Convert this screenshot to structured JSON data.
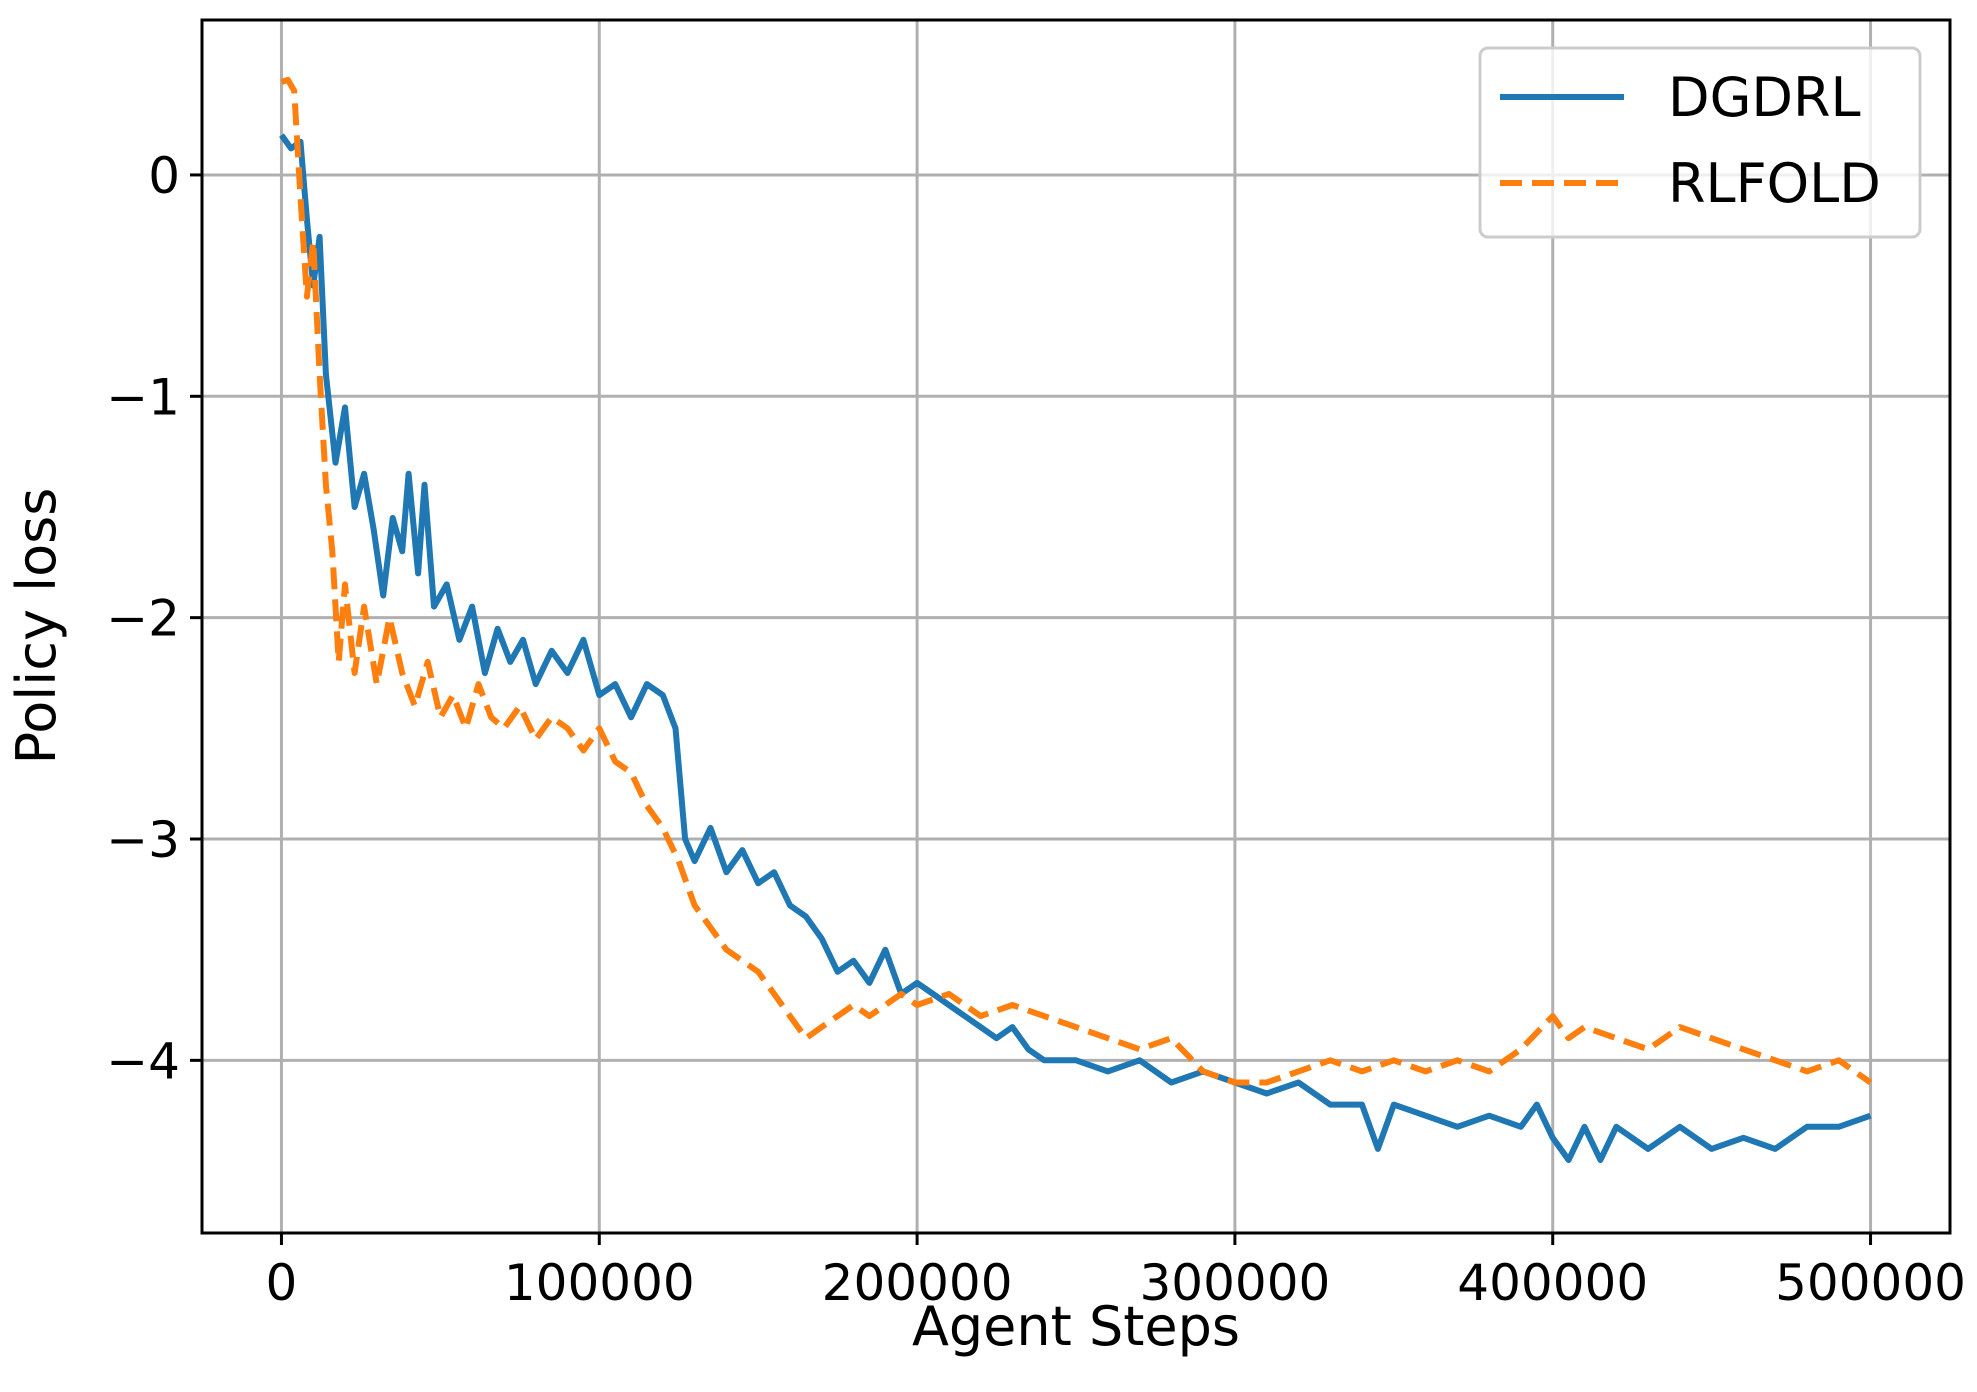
{
  "chart_data": {
    "type": "line",
    "xlabel": "Agent Steps",
    "ylabel": "Policy loss",
    "xlim": [
      -25000,
      525000
    ],
    "ylim": [
      -4.78,
      0.7
    ],
    "xticks": [
      0,
      100000,
      200000,
      300000,
      400000,
      500000
    ],
    "xtick_labels": [
      "0",
      "100000",
      "200000",
      "300000",
      "400000",
      "500000"
    ],
    "yticks": [
      0,
      -1,
      -2,
      -3,
      -4
    ],
    "ytick_labels": [
      "0",
      "−1",
      "−2",
      "−3",
      "−4"
    ],
    "grid": true,
    "legend_position": "top-right",
    "series": [
      {
        "name": "DGDRL",
        "color": "#1f77b4",
        "dash": "solid",
        "points": [
          [
            0,
            0.18
          ],
          [
            3000,
            0.12
          ],
          [
            6000,
            0.15
          ],
          [
            8000,
            -0.2
          ],
          [
            10000,
            -0.5
          ],
          [
            12000,
            -0.28
          ],
          [
            14000,
            -0.9
          ],
          [
            17000,
            -1.3
          ],
          [
            20000,
            -1.05
          ],
          [
            23000,
            -1.5
          ],
          [
            26000,
            -1.35
          ],
          [
            29000,
            -1.6
          ],
          [
            32000,
            -1.9
          ],
          [
            35000,
            -1.55
          ],
          [
            38000,
            -1.7
          ],
          [
            40000,
            -1.35
          ],
          [
            43000,
            -1.8
          ],
          [
            45000,
            -1.4
          ],
          [
            48000,
            -1.95
          ],
          [
            52000,
            -1.85
          ],
          [
            56000,
            -2.1
          ],
          [
            60000,
            -1.95
          ],
          [
            64000,
            -2.25
          ],
          [
            68000,
            -2.05
          ],
          [
            72000,
            -2.2
          ],
          [
            76000,
            -2.1
          ],
          [
            80000,
            -2.3
          ],
          [
            85000,
            -2.15
          ],
          [
            90000,
            -2.25
          ],
          [
            95000,
            -2.1
          ],
          [
            100000,
            -2.35
          ],
          [
            105000,
            -2.3
          ],
          [
            110000,
            -2.45
          ],
          [
            115000,
            -2.3
          ],
          [
            120000,
            -2.35
          ],
          [
            124000,
            -2.5
          ],
          [
            127000,
            -3.0
          ],
          [
            130000,
            -3.1
          ],
          [
            135000,
            -2.95
          ],
          [
            140000,
            -3.15
          ],
          [
            145000,
            -3.05
          ],
          [
            150000,
            -3.2
          ],
          [
            155000,
            -3.15
          ],
          [
            160000,
            -3.3
          ],
          [
            165000,
            -3.35
          ],
          [
            170000,
            -3.45
          ],
          [
            175000,
            -3.6
          ],
          [
            180000,
            -3.55
          ],
          [
            185000,
            -3.65
          ],
          [
            190000,
            -3.5
          ],
          [
            195000,
            -3.7
          ],
          [
            200000,
            -3.65
          ],
          [
            205000,
            -3.7
          ],
          [
            210000,
            -3.75
          ],
          [
            215000,
            -3.8
          ],
          [
            220000,
            -3.85
          ],
          [
            225000,
            -3.9
          ],
          [
            230000,
            -3.85
          ],
          [
            235000,
            -3.95
          ],
          [
            240000,
            -4.0
          ],
          [
            250000,
            -4.0
          ],
          [
            260000,
            -4.05
          ],
          [
            270000,
            -4.0
          ],
          [
            280000,
            -4.1
          ],
          [
            290000,
            -4.05
          ],
          [
            300000,
            -4.1
          ],
          [
            310000,
            -4.15
          ],
          [
            320000,
            -4.1
          ],
          [
            330000,
            -4.2
          ],
          [
            340000,
            -4.2
          ],
          [
            345000,
            -4.4
          ],
          [
            350000,
            -4.2
          ],
          [
            360000,
            -4.25
          ],
          [
            370000,
            -4.3
          ],
          [
            380000,
            -4.25
          ],
          [
            390000,
            -4.3
          ],
          [
            395000,
            -4.2
          ],
          [
            400000,
            -4.35
          ],
          [
            405000,
            -4.45
          ],
          [
            410000,
            -4.3
          ],
          [
            415000,
            -4.45
          ],
          [
            420000,
            -4.3
          ],
          [
            430000,
            -4.4
          ],
          [
            440000,
            -4.3
          ],
          [
            450000,
            -4.4
          ],
          [
            460000,
            -4.35
          ],
          [
            470000,
            -4.4
          ],
          [
            480000,
            -4.3
          ],
          [
            490000,
            -4.3
          ],
          [
            500000,
            -4.25
          ]
        ]
      },
      {
        "name": "RLFOLD",
        "color": "#ff7f0e",
        "dash": "dashed",
        "points": [
          [
            0,
            0.42
          ],
          [
            2000,
            0.43
          ],
          [
            4000,
            0.38
          ],
          [
            6000,
            -0.1
          ],
          [
            8000,
            -0.55
          ],
          [
            10000,
            -0.3
          ],
          [
            12000,
            -0.9
          ],
          [
            14000,
            -1.4
          ],
          [
            16000,
            -1.7
          ],
          [
            18000,
            -2.2
          ],
          [
            20000,
            -1.85
          ],
          [
            23000,
            -2.25
          ],
          [
            26000,
            -1.95
          ],
          [
            30000,
            -2.3
          ],
          [
            34000,
            -2.0
          ],
          [
            38000,
            -2.25
          ],
          [
            42000,
            -2.4
          ],
          [
            46000,
            -2.2
          ],
          [
            50000,
            -2.45
          ],
          [
            54000,
            -2.35
          ],
          [
            58000,
            -2.5
          ],
          [
            62000,
            -2.3
          ],
          [
            66000,
            -2.45
          ],
          [
            70000,
            -2.5
          ],
          [
            75000,
            -2.4
          ],
          [
            80000,
            -2.55
          ],
          [
            85000,
            -2.45
          ],
          [
            90000,
            -2.5
          ],
          [
            95000,
            -2.6
          ],
          [
            100000,
            -2.5
          ],
          [
            105000,
            -2.65
          ],
          [
            110000,
            -2.7
          ],
          [
            115000,
            -2.85
          ],
          [
            120000,
            -2.95
          ],
          [
            125000,
            -3.1
          ],
          [
            130000,
            -3.3
          ],
          [
            135000,
            -3.4
          ],
          [
            140000,
            -3.5
          ],
          [
            145000,
            -3.55
          ],
          [
            150000,
            -3.6
          ],
          [
            155000,
            -3.7
          ],
          [
            160000,
            -3.8
          ],
          [
            165000,
            -3.9
          ],
          [
            170000,
            -3.85
          ],
          [
            175000,
            -3.8
          ],
          [
            180000,
            -3.75
          ],
          [
            185000,
            -3.8
          ],
          [
            190000,
            -3.75
          ],
          [
            195000,
            -3.7
          ],
          [
            200000,
            -3.75
          ],
          [
            210000,
            -3.7
          ],
          [
            220000,
            -3.8
          ],
          [
            230000,
            -3.75
          ],
          [
            240000,
            -3.8
          ],
          [
            250000,
            -3.85
          ],
          [
            260000,
            -3.9
          ],
          [
            270000,
            -3.95
          ],
          [
            280000,
            -3.9
          ],
          [
            290000,
            -4.05
          ],
          [
            300000,
            -4.1
          ],
          [
            310000,
            -4.1
          ],
          [
            320000,
            -4.05
          ],
          [
            330000,
            -4.0
          ],
          [
            340000,
            -4.05
          ],
          [
            350000,
            -4.0
          ],
          [
            360000,
            -4.05
          ],
          [
            370000,
            -4.0
          ],
          [
            380000,
            -4.05
          ],
          [
            390000,
            -3.95
          ],
          [
            400000,
            -3.8
          ],
          [
            405000,
            -3.9
          ],
          [
            410000,
            -3.85
          ],
          [
            420000,
            -3.9
          ],
          [
            430000,
            -3.95
          ],
          [
            440000,
            -3.85
          ],
          [
            450000,
            -3.9
          ],
          [
            460000,
            -3.95
          ],
          [
            470000,
            -4.0
          ],
          [
            480000,
            -4.05
          ],
          [
            490000,
            -4.0
          ],
          [
            500000,
            -4.1
          ]
        ]
      }
    ]
  }
}
